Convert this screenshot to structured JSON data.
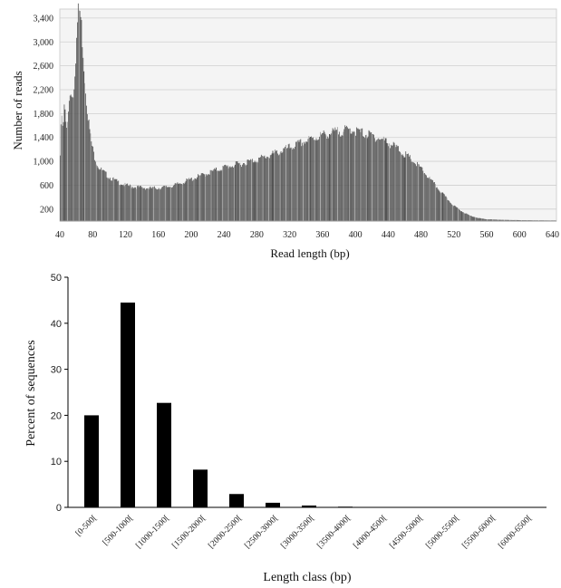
{
  "chart_data": [
    {
      "type": "bar",
      "xlabel": "Read length (bp)",
      "ylabel": "Number of reads",
      "x_ticks": [
        40,
        80,
        120,
        160,
        200,
        240,
        280,
        320,
        360,
        400,
        440,
        480,
        520,
        560,
        600,
        640
      ],
      "y_ticks": [
        200,
        600,
        1000,
        1400,
        1800,
        2200,
        2600,
        3000,
        3400
      ],
      "y_tick_labels": [
        "200",
        "600",
        "1,000",
        "1,400",
        "1,800",
        "2,200",
        "2,600",
        "3,000",
        "3,400"
      ],
      "xlim": [
        40,
        645
      ],
      "ylim": [
        0,
        3550
      ],
      "grid": true,
      "bar_color": "#555555",
      "curve": [
        [
          40,
          900
        ],
        [
          41,
          1350
        ],
        [
          42,
          1900
        ],
        [
          44,
          1600
        ],
        [
          46,
          1950
        ],
        [
          48,
          1500
        ],
        [
          50,
          1700
        ],
        [
          52,
          2100
        ],
        [
          54,
          2200
        ],
        [
          56,
          2050
        ],
        [
          58,
          2400
        ],
        [
          60,
          2900
        ],
        [
          62,
          3450
        ],
        [
          64,
          3550
        ],
        [
          66,
          3350
        ],
        [
          68,
          2950
        ],
        [
          70,
          2500
        ],
        [
          72,
          2100
        ],
        [
          75,
          1700
        ],
        [
          78,
          1350
        ],
        [
          82,
          1100
        ],
        [
          86,
          940
        ],
        [
          90,
          860
        ],
        [
          95,
          800
        ],
        [
          100,
          740
        ],
        [
          110,
          660
        ],
        [
          120,
          600
        ],
        [
          130,
          575
        ],
        [
          140,
          560
        ],
        [
          150,
          550
        ],
        [
          160,
          555
        ],
        [
          170,
          570
        ],
        [
          180,
          600
        ],
        [
          190,
          650
        ],
        [
          200,
          700
        ],
        [
          220,
          800
        ],
        [
          240,
          900
        ],
        [
          260,
          960
        ],
        [
          280,
          1030
        ],
        [
          300,
          1120
        ],
        [
          320,
          1230
        ],
        [
          340,
          1340
        ],
        [
          360,
          1440
        ],
        [
          380,
          1500
        ],
        [
          390,
          1520
        ],
        [
          396,
          1540
        ],
        [
          400,
          1510
        ],
        [
          410,
          1470
        ],
        [
          420,
          1430
        ],
        [
          430,
          1380
        ],
        [
          440,
          1320
        ],
        [
          450,
          1230
        ],
        [
          460,
          1120
        ],
        [
          470,
          1010
        ],
        [
          480,
          880
        ],
        [
          490,
          720
        ],
        [
          500,
          560
        ],
        [
          510,
          400
        ],
        [
          520,
          260
        ],
        [
          530,
          160
        ],
        [
          540,
          90
        ],
        [
          550,
          50
        ],
        [
          560,
          30
        ],
        [
          580,
          20
        ],
        [
          600,
          15
        ],
        [
          620,
          12
        ],
        [
          645,
          10
        ]
      ]
    },
    {
      "type": "bar",
      "xlabel": "Length class (bp)",
      "ylabel": "Percent of sequences",
      "categories": [
        "[0-500[",
        "[500-1000[",
        "[1000-1500[",
        "[1500-2000[",
        "[2000-2500[",
        "[2500-3000[",
        "[3000-3500[",
        "[3500-4000[",
        "[4000-4500[",
        "[4500-5000[",
        "[5000-5500[",
        "[5500-6000[",
        "[6000-6500["
      ],
      "values": [
        20.0,
        44.5,
        22.7,
        8.2,
        2.9,
        1.0,
        0.4,
        0.15,
        0.05,
        0.02,
        0.01,
        0.01,
        0.01
      ],
      "ylim": [
        0,
        50
      ],
      "y_ticks": [
        0,
        10,
        20,
        30,
        40,
        50
      ],
      "bar_color": "#000000"
    }
  ]
}
